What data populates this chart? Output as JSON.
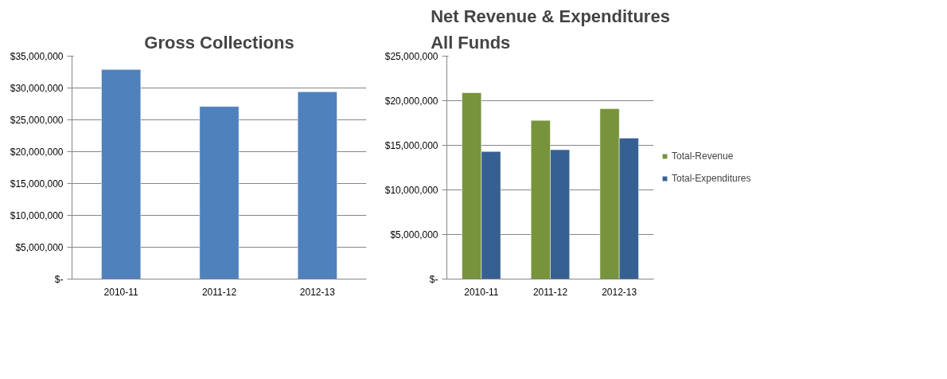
{
  "chart_data": [
    {
      "type": "bar",
      "title": "Gross Collections",
      "categories": [
        "2010-11",
        "2011-12",
        "2012-13"
      ],
      "series": [
        {
          "color": "#4f81bd",
          "values": [
            32900000,
            27100000,
            29400000
          ]
        }
      ],
      "ylim": [
        0,
        35000000
      ],
      "yticks": [
        {
          "value": 0,
          "label": "$-"
        },
        {
          "value": 5000000,
          "label": "$5,000,000"
        },
        {
          "value": 10000000,
          "label": "$10,000,000"
        },
        {
          "value": 15000000,
          "label": "$15,000,000"
        },
        {
          "value": 20000000,
          "label": "$20,000,000"
        },
        {
          "value": 25000000,
          "label": "$25,000,000"
        },
        {
          "value": 30000000,
          "label": "$30,000,000"
        },
        {
          "value": 35000000,
          "label": "$35,000,000"
        }
      ],
      "grid": "y",
      "legend": false
    },
    {
      "type": "bar",
      "title": "Net Revenue & Expenditures\nAll Funds",
      "categories": [
        "2010-11",
        "2011-12",
        "2012-13"
      ],
      "series": [
        {
          "name": "Total-Revenue",
          "color": "#77933c",
          "values": [
            20900000,
            17800000,
            19100000
          ]
        },
        {
          "name": "Total-Expenditures",
          "color": "#376092",
          "values": [
            14300000,
            14500000,
            15800000
          ]
        }
      ],
      "ylim": [
        0,
        25000000
      ],
      "yticks": [
        {
          "value": 0,
          "label": "$-"
        },
        {
          "value": 5000000,
          "label": "$5,000,000"
        },
        {
          "value": 10000000,
          "label": "$10,000,000"
        },
        {
          "value": 15000000,
          "label": "$15,000,000"
        },
        {
          "value": 20000000,
          "label": "$20,000,000"
        },
        {
          "value": 25000000,
          "label": "$25,000,000"
        }
      ],
      "grid": "y",
      "legend": "right"
    }
  ]
}
